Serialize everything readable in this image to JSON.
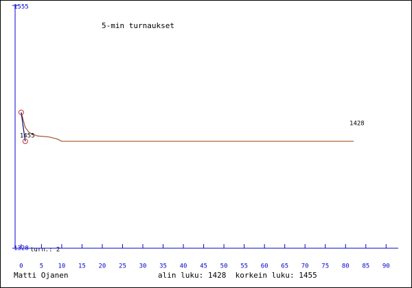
{
  "chart_data": {
    "type": "line",
    "title": "5-min turnaukset",
    "footer_left": "Matti Ojanen",
    "footer_right": "alin luku: 1428  korkein luku: 1455",
    "count_label": "turn.: 2",
    "xlim": [
      -1.5,
      93
    ],
    "xticks": [
      0,
      5,
      10,
      15,
      20,
      25,
      30,
      35,
      40,
      45,
      50,
      55,
      60,
      65,
      70,
      75,
      80,
      85,
      90
    ],
    "ylim": [
      1328,
      1555
    ],
    "yticks": [
      1328,
      1555
    ],
    "axis_color": "#0000cc",
    "series": [
      {
        "color": "#000080",
        "marker_color": "#c03030",
        "x": [
          0,
          1
        ],
        "values": [
          1455,
          1428
        ],
        "value_labels": [
          "1455",
          "1428"
        ]
      },
      {
        "color": "#a0522d",
        "x": [
          0,
          1,
          2,
          4,
          7,
          9,
          10,
          82
        ],
        "values": [
          1455,
          1441,
          1436,
          1433,
          1432,
          1430,
          1428,
          1428
        ]
      }
    ]
  }
}
